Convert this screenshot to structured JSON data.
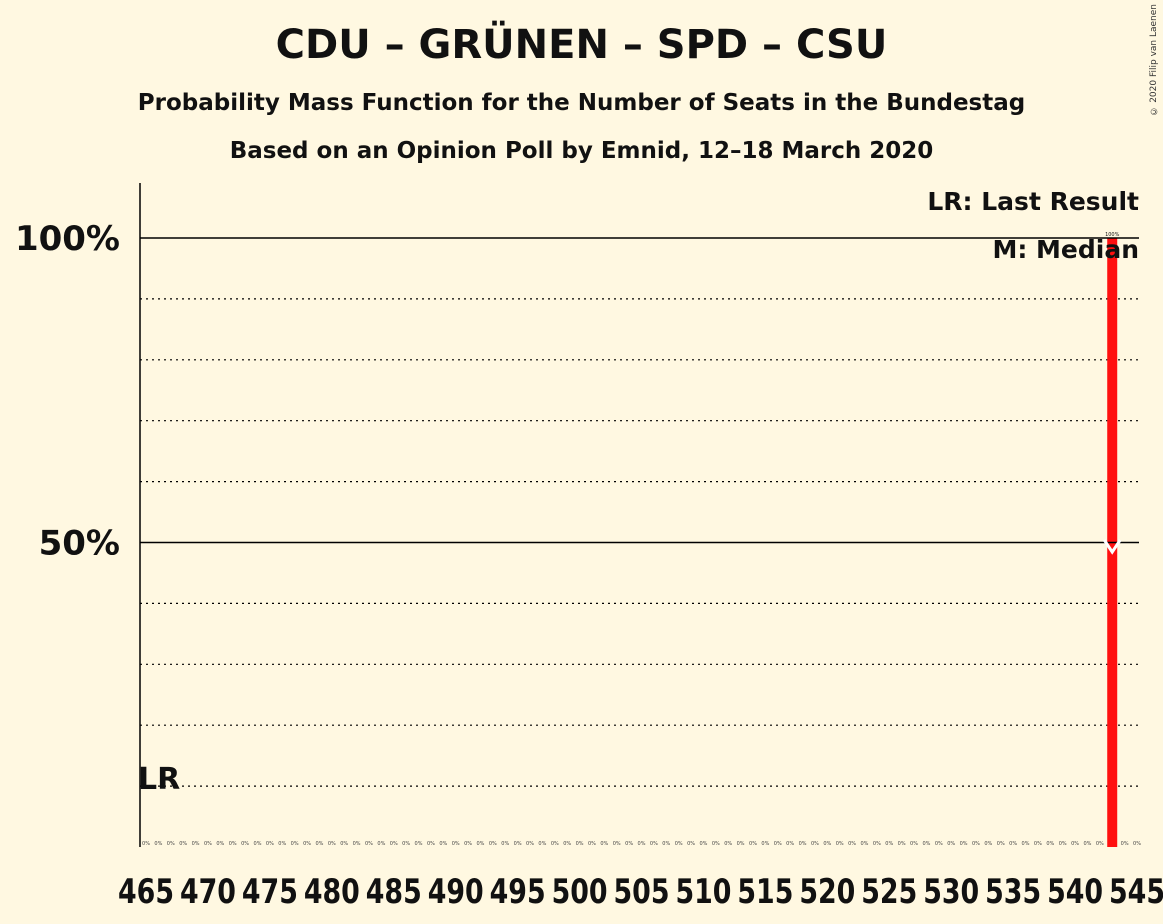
{
  "title": "CDU – GRÜNEN – SPD – CSU",
  "subtitle": "Probability Mass Function for the Number of Seats in the Bundestag",
  "subtitle2": "Based on an Opinion Poll by Emnid, 12–18 March 2020",
  "copyright": "© 2020 Filip van Laenen",
  "legend": {
    "lr": "LR: Last Result",
    "m": "M: Median"
  },
  "lr_marker": "LR",
  "median_marker": "M",
  "colors": {
    "background": "#fff8e1",
    "bar": "#ff1010",
    "axis": "#000000"
  },
  "chart_data": {
    "type": "bar",
    "title": "CDU – GRÜNEN – SPD – CSU",
    "xlabel": "",
    "ylabel": "",
    "x_tick_labels": [
      "465",
      "470",
      "475",
      "480",
      "485",
      "490",
      "495",
      "500",
      "505",
      "510",
      "515",
      "520",
      "525",
      "530",
      "535",
      "540",
      "545"
    ],
    "x_range": [
      465,
      545
    ],
    "ylim": [
      0,
      1
    ],
    "y_ticks": [
      {
        "value": 0.5,
        "label": "50%"
      },
      {
        "value": 1.0,
        "label": "100%"
      }
    ],
    "grid": "dotted every 10%",
    "last_result_seat": 465,
    "median_seat": 543,
    "values": [
      {
        "seat": 543,
        "probability": 1.0,
        "label": "100%"
      }
    ],
    "zero_label": "0%"
  }
}
